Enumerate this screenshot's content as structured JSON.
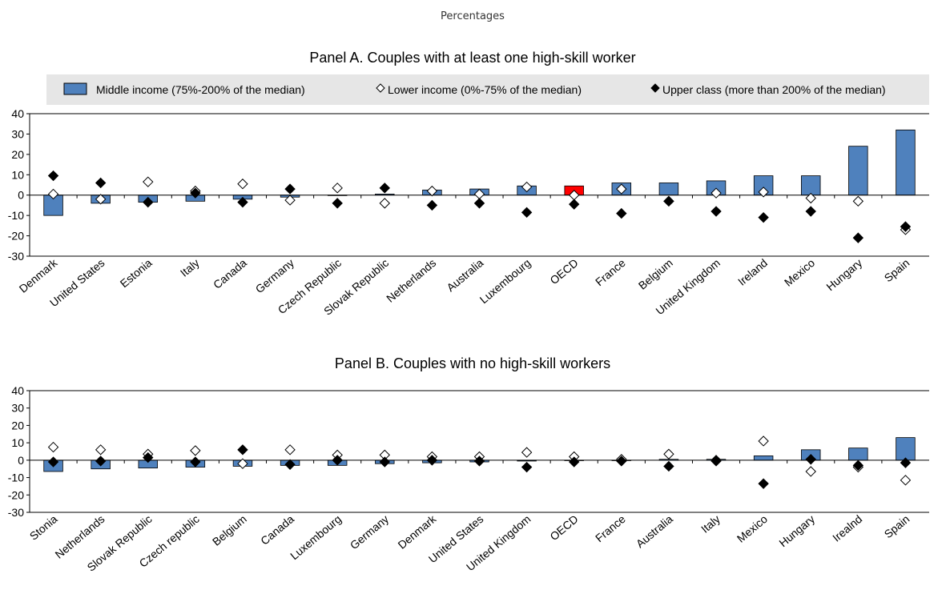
{
  "subtitle": "Percentages",
  "legend": {
    "middle": "Middle income (75%-200% of the median)",
    "lower": "Lower income (0%-75% of the median)",
    "upper": "Upper class (more than 200% of the median)"
  },
  "colors": {
    "bar": "#4f81bd",
    "bar_highlight": "#ff0000",
    "legend_bg": "#e6e6e6",
    "diamond_open": "#ffffff",
    "diamond_filled": "#000000"
  },
  "chart_data": [
    {
      "type": "bar",
      "title": "Panel A. Couples with at least one high-skill worker",
      "ylim": [
        -30,
        40
      ],
      "yticks": [
        40,
        30,
        20,
        10,
        0,
        -10,
        -20,
        -30
      ],
      "highlight": "OECD",
      "categories": [
        "Denmark",
        "United States",
        "Estonia",
        "Italy",
        "Canada",
        "Germany",
        "Czech Republic",
        "Slovak Republic",
        "Netherlands",
        "Australia",
        "Luxembourg",
        "OECD",
        "France",
        "Belgium",
        "United Kingdom",
        "Ireland",
        "Mexico",
        "Hungary",
        "Spain"
      ],
      "series": [
        {
          "name": "Middle income (75%-200% of the median)",
          "kind": "bar",
          "values": [
            -10,
            -4,
            -3.5,
            -3,
            -2,
            -1,
            0,
            0.5,
            2.5,
            3,
            4.5,
            4.5,
            6,
            6,
            7,
            9.5,
            9.5,
            24,
            32
          ]
        },
        {
          "name": "Lower income (0%-75% of the median)",
          "kind": "open-diamond",
          "values": [
            0.5,
            -2,
            6.5,
            2,
            5.5,
            -2.5,
            3.5,
            -4,
            2,
            0.5,
            4,
            0,
            3,
            -3,
            1,
            1.5,
            -1.5,
            -3,
            -17
          ]
        },
        {
          "name": "Upper class (more than 200% of the median)",
          "kind": "filled-diamond",
          "values": [
            9.5,
            6,
            -3.5,
            1,
            -3.5,
            3,
            -4,
            3.5,
            -5,
            -4,
            -8.5,
            -4.5,
            -9,
            -3,
            -8,
            -11,
            -8,
            -21,
            -15.5
          ]
        }
      ]
    },
    {
      "type": "bar",
      "title": "Panel B. Couples with no high-skill workers",
      "ylim": [
        -30,
        40
      ],
      "yticks": [
        40,
        30,
        20,
        10,
        0,
        -10,
        -20,
        -30
      ],
      "highlight": "",
      "categories": [
        "Stonia",
        "Netherlands",
        "Slovak Republic",
        "Czech republic",
        "Belgium",
        "Canada",
        "Luxembourg",
        "Germany",
        "Denmark",
        "United States",
        "United Kingdom",
        "OECD",
        "France",
        "Australia",
        "Italy",
        "Mexico",
        "Hungary",
        "Irealnd",
        "Spain"
      ],
      "series": [
        {
          "name": "Middle income (75%-200% of the median)",
          "kind": "bar",
          "values": [
            -6.5,
            -5,
            -4.5,
            -4,
            -3.5,
            -3,
            -3,
            -2,
            -1.5,
            -1,
            -0.5,
            0,
            0,
            0.5,
            0.5,
            2.5,
            6,
            7,
            13
          ]
        },
        {
          "name": "Lower income (0%-75% of the median)",
          "kind": "open-diamond",
          "values": [
            7.5,
            6,
            3.5,
            5.5,
            -2,
            6,
            3,
            3,
            2,
            2,
            4.5,
            2,
            0.5,
            3.5,
            0,
            11,
            -6.5,
            -4,
            -11.5
          ]
        },
        {
          "name": "Upper class (more than 200% of the median)",
          "kind": "filled-diamond",
          "values": [
            -1,
            -0.5,
            1.5,
            -1,
            6,
            -2.5,
            0,
            -1,
            0,
            -0.5,
            -4,
            -1,
            -0.5,
            -3.5,
            -0.5,
            -13.5,
            0.5,
            -3,
            -1.5
          ]
        }
      ]
    }
  ]
}
